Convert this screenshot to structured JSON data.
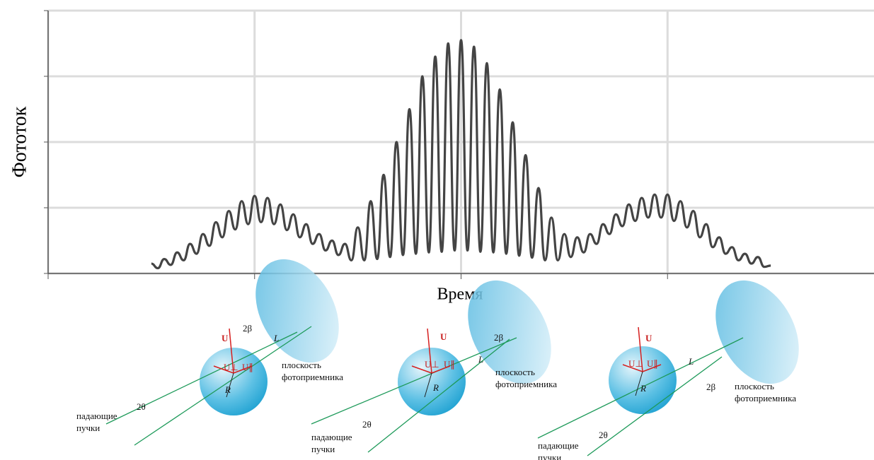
{
  "chart_data": {
    "type": "line",
    "ylabel": "Фототок",
    "xlabel": "Время",
    "xlim": [
      0,
      16
    ],
    "ylim": [
      0,
      4
    ],
    "xticks": [
      0,
      4,
      8,
      12
    ],
    "yticks": [
      0,
      1,
      2,
      3,
      4
    ],
    "grid": true,
    "series": [
      {
        "color": "#444444",
        "x": [
          2,
          2.125,
          2.25,
          2.375,
          2.5,
          2.625,
          2.75,
          2.875,
          3,
          3.125,
          3.25,
          3.375,
          3.5,
          3.625,
          3.75,
          3.875,
          4,
          4.125,
          4.25,
          4.375,
          4.5,
          4.625,
          4.75,
          4.875,
          5,
          5.125,
          5.25,
          5.375,
          5.5,
          5.625,
          5.75,
          5.875,
          6,
          6.125,
          6.25,
          6.375,
          6.5,
          6.625,
          6.75,
          6.875,
          7,
          7.125,
          7.25,
          7.375,
          7.5,
          7.625,
          7.75,
          7.875,
          8,
          8.125,
          8.25,
          8.375,
          8.5,
          8.625,
          8.75,
          8.875,
          9,
          9.125,
          9.25,
          9.375,
          9.5,
          9.625,
          9.75,
          9.875,
          10,
          10.125,
          10.25,
          10.375,
          10.5,
          10.625,
          10.75,
          10.875,
          11,
          11.125,
          11.25,
          11.375,
          11.5,
          11.625,
          11.75,
          11.875,
          12,
          12.125,
          12.25,
          12.375,
          12.5,
          12.625,
          12.75,
          12.875,
          13,
          13.125,
          13.25,
          13.375,
          13.5,
          13.625,
          13.75,
          13.875,
          14
        ],
        "values": [
          0.15,
          0.08,
          0.22,
          0.13,
          0.32,
          0.2,
          0.45,
          0.3,
          0.6,
          0.42,
          0.78,
          0.55,
          0.95,
          0.67,
          1.1,
          0.75,
          1.18,
          0.78,
          1.15,
          0.75,
          1.05,
          0.66,
          0.9,
          0.55,
          0.75,
          0.45,
          0.6,
          0.35,
          0.5,
          0.28,
          0.45,
          0.2,
          0.7,
          0.2,
          1.1,
          0.22,
          1.5,
          0.25,
          2.0,
          0.28,
          2.5,
          0.3,
          3.0,
          0.32,
          3.3,
          0.33,
          3.5,
          0.35,
          3.55,
          0.35,
          3.45,
          0.33,
          3.2,
          0.32,
          2.8,
          0.3,
          2.3,
          0.27,
          1.8,
          0.24,
          1.3,
          0.2,
          0.85,
          0.2,
          0.6,
          0.25,
          0.55,
          0.32,
          0.6,
          0.45,
          0.75,
          0.6,
          0.9,
          0.72,
          1.05,
          0.8,
          1.15,
          0.85,
          1.2,
          0.85,
          1.2,
          0.8,
          1.1,
          0.7,
          0.95,
          0.55,
          0.75,
          0.4,
          0.55,
          0.3,
          0.4,
          0.2,
          0.3,
          0.15,
          0.25,
          0.1,
          0.12
        ]
      }
    ]
  },
  "diagrams": [
    {
      "u": "U",
      "beta": "2β",
      "l": "L",
      "uperp": "U⊥",
      "upar": "U∥",
      "r": "R",
      "plane": [
        "плоскость",
        "фотоприемника"
      ],
      "beams": [
        "падающие",
        "пучки"
      ],
      "theta": "2θ"
    },
    {
      "u": "U",
      "beta": "2β",
      "l": "L",
      "uperp": "U⊥",
      "upar": "U∥",
      "r": "R",
      "plane": [
        "плоскость",
        "фотоприемника"
      ],
      "beams": [
        "падающие",
        "пучки"
      ],
      "theta": "2θ"
    },
    {
      "u": "U",
      "beta": "2β",
      "l": "L",
      "uperp": "U⊥",
      "upar": "U∥",
      "r": "R",
      "plane": [
        "плоскость",
        "фотоприемника"
      ],
      "beams": [
        "падающие",
        "пучки"
      ],
      "theta": "2θ"
    }
  ]
}
